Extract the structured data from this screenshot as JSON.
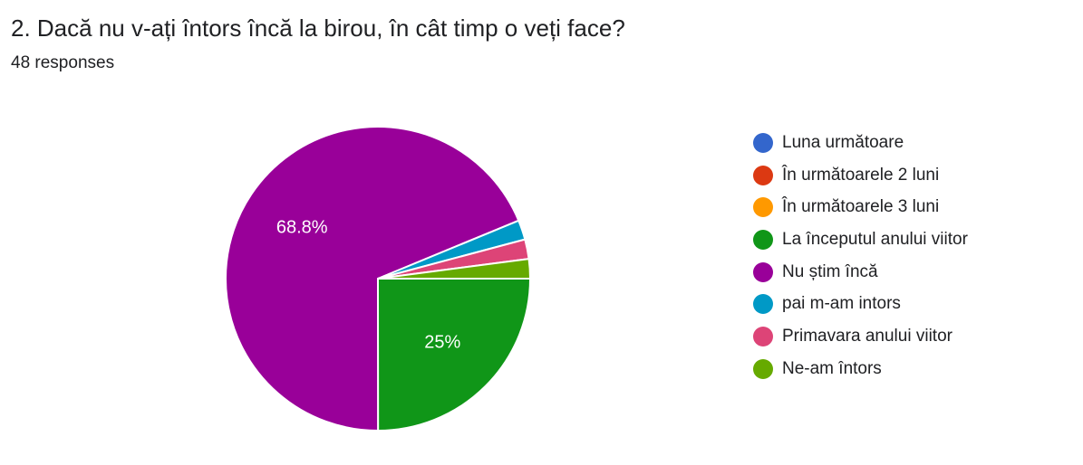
{
  "title": "2. Dacă nu v-ați întors încă la birou, în cât timp o veți face?",
  "subtitle": "48 responses",
  "chart_data": {
    "type": "pie",
    "total_responses": 48,
    "slices": [
      {
        "label": "Luna următoare",
        "percent": 0,
        "color": "#3366cc"
      },
      {
        "label": "În următoarele 2 luni",
        "percent": 0,
        "color": "#dc3912"
      },
      {
        "label": "În următoarele 3 luni",
        "percent": 0,
        "color": "#ff9900"
      },
      {
        "label": "La începutul anului viitor",
        "percent": 25,
        "color": "#109618",
        "data_label": "25%"
      },
      {
        "label": "Nu știm încă",
        "percent": 68.8,
        "color": "#990099",
        "data_label": "68.8%"
      },
      {
        "label": "pai m-am intors",
        "percent": 2.08,
        "color": "#0099c6"
      },
      {
        "label": "Primavara anului viitor",
        "percent": 2.08,
        "color": "#dd4477"
      },
      {
        "label": "Ne-am întors",
        "percent": 2.08,
        "color": "#66aa00"
      }
    ],
    "legend_position": "right"
  }
}
